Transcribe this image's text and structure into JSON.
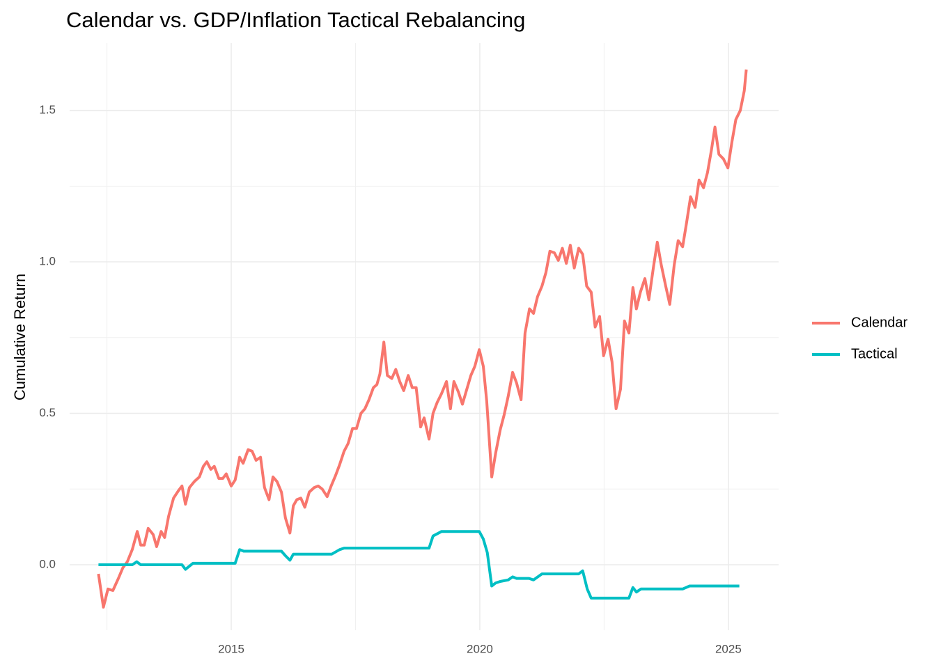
{
  "chart_data": {
    "type": "line",
    "title": "Calendar vs. GDP/Inflation Tactical Rebalancing",
    "y_label": "Cumulative Return",
    "xlim": [
      2011.75,
      2026.01
    ],
    "ylim": [
      -0.216,
      1.722
    ],
    "xticks": [
      2015,
      2020,
      2025
    ],
    "yticks": [
      {
        "value": 0,
        "label": "0.0"
      },
      0.5,
      {
        "value": 1,
        "label": "1.0"
      },
      1.5
    ],
    "xminor_ticks": [
      2012.5,
      2017.5,
      2022.5
    ],
    "yminor_ticks": [
      0.25,
      0.75,
      1.25
    ],
    "grid": true,
    "legend": "right",
    "series": [
      {
        "name": "Calendar",
        "color": "#F8766D",
        "x": [
          2012.33,
          2012.43,
          2012.52,
          2012.62,
          2012.73,
          2012.82,
          2012.91,
          2013.01,
          2013.11,
          2013.18,
          2013.25,
          2013.33,
          2013.43,
          2013.5,
          2013.59,
          2013.66,
          2013.74,
          2013.84,
          2013.94,
          2014.01,
          2014.08,
          2014.16,
          2014.26,
          2014.36,
          2014.44,
          2014.51,
          2014.59,
          2014.66,
          2014.75,
          2014.83,
          2014.9,
          2015.0,
          2015.08,
          2015.17,
          2015.24,
          2015.34,
          2015.42,
          2015.5,
          2015.59,
          2015.67,
          2015.76,
          2015.84,
          2015.92,
          2016.01,
          2016.09,
          2016.18,
          2016.25,
          2016.32,
          2016.4,
          2016.48,
          2016.57,
          2016.67,
          2016.75,
          2016.83,
          2016.93,
          2017.01,
          2017.1,
          2017.18,
          2017.27,
          2017.35,
          2017.44,
          2017.52,
          2017.61,
          2017.69,
          2017.77,
          2017.86,
          2017.93,
          2017.99,
          2018.07,
          2018.14,
          2018.23,
          2018.31,
          2018.39,
          2018.47,
          2018.56,
          2018.64,
          2018.72,
          2018.81,
          2018.88,
          2018.98,
          2019.06,
          2019.14,
          2019.23,
          2019.33,
          2019.41,
          2019.48,
          2019.57,
          2019.65,
          2019.73,
          2019.82,
          2019.9,
          2019.99,
          2020.07,
          2020.14,
          2020.24,
          2020.32,
          2020.41,
          2020.49,
          2020.57,
          2020.66,
          2020.74,
          2020.83,
          2020.91,
          2021.0,
          2021.08,
          2021.16,
          2021.25,
          2021.33,
          2021.41,
          2021.5,
          2021.58,
          2021.66,
          2021.74,
          2021.82,
          2021.9,
          2021.99,
          2022.07,
          2022.15,
          2022.24,
          2022.32,
          2022.41,
          2022.49,
          2022.58,
          2022.66,
          2022.74,
          2022.83,
          2022.91,
          2023.0,
          2023.08,
          2023.15,
          2023.23,
          2023.32,
          2023.4,
          2023.49,
          2023.57,
          2023.65,
          2023.74,
          2023.82,
          2023.91,
          2023.99,
          2024.08,
          2024.16,
          2024.24,
          2024.33,
          2024.41,
          2024.5,
          2024.58,
          2024.66,
          2024.73,
          2024.81,
          2024.9,
          2024.99,
          2025.07,
          2025.15,
          2025.24,
          2025.32,
          2025.36
        ],
        "values": [
          -0.03,
          -0.14,
          -0.08,
          -0.085,
          -0.045,
          -0.01,
          0.01,
          0.05,
          0.11,
          0.065,
          0.065,
          0.12,
          0.1,
          0.06,
          0.11,
          0.09,
          0.16,
          0.22,
          0.245,
          0.26,
          0.2,
          0.255,
          0.275,
          0.29,
          0.325,
          0.34,
          0.315,
          0.325,
          0.285,
          0.285,
          0.3,
          0.26,
          0.28,
          0.355,
          0.335,
          0.38,
          0.375,
          0.345,
          0.355,
          0.255,
          0.215,
          0.29,
          0.275,
          0.24,
          0.155,
          0.105,
          0.195,
          0.215,
          0.22,
          0.19,
          0.24,
          0.255,
          0.26,
          0.25,
          0.225,
          0.26,
          0.295,
          0.33,
          0.375,
          0.4,
          0.45,
          0.45,
          0.5,
          0.515,
          0.545,
          0.585,
          0.595,
          0.63,
          0.735,
          0.625,
          0.615,
          0.645,
          0.605,
          0.575,
          0.625,
          0.585,
          0.585,
          0.455,
          0.485,
          0.415,
          0.5,
          0.535,
          0.565,
          0.605,
          0.515,
          0.605,
          0.57,
          0.53,
          0.575,
          0.625,
          0.655,
          0.71,
          0.655,
          0.54,
          0.29,
          0.37,
          0.445,
          0.495,
          0.555,
          0.635,
          0.6,
          0.545,
          0.765,
          0.845,
          0.83,
          0.885,
          0.92,
          0.965,
          1.035,
          1.03,
          1.005,
          1.045,
          0.995,
          1.055,
          0.98,
          1.045,
          1.025,
          0.92,
          0.9,
          0.785,
          0.82,
          0.69,
          0.745,
          0.67,
          0.515,
          0.58,
          0.805,
          0.765,
          0.915,
          0.845,
          0.9,
          0.945,
          0.875,
          0.98,
          1.065,
          0.99,
          0.92,
          0.86,
          0.99,
          1.07,
          1.05,
          1.13,
          1.215,
          1.18,
          1.27,
          1.245,
          1.295,
          1.37,
          1.445,
          1.355,
          1.34,
          1.31,
          1.395,
          1.47,
          1.5,
          1.565,
          1.635
        ]
      },
      {
        "name": "Tactical",
        "color": "#00BFC4",
        "x": [
          2012.33,
          2013.01,
          2013.1,
          2013.18,
          2014.01,
          2014.08,
          2014.23,
          2015.08,
          2015.17,
          2015.25,
          2016.01,
          2016.09,
          2016.18,
          2016.25,
          2017.02,
          2017.18,
          2017.27,
          2018.98,
          2019.06,
          2019.23,
          2019.99,
          2020.07,
          2020.15,
          2020.24,
          2020.32,
          2020.41,
          2020.57,
          2020.66,
          2020.74,
          2020.99,
          2021.08,
          2021.25,
          2021.99,
          2022.07,
          2022.16,
          2022.24,
          2023.0,
          2023.08,
          2023.15,
          2023.24,
          2024.08,
          2024.22,
          2025.22
        ],
        "values": [
          0,
          0,
          0.01,
          0,
          0,
          -0.015,
          0.005,
          0.005,
          0.05,
          0.045,
          0.045,
          0.03,
          0.015,
          0.035,
          0.035,
          0.05,
          0.055,
          0.055,
          0.095,
          0.11,
          0.11,
          0.085,
          0.04,
          -0.07,
          -0.06,
          -0.055,
          -0.05,
          -0.04,
          -0.045,
          -0.045,
          -0.05,
          -0.03,
          -0.03,
          -0.02,
          -0.08,
          -0.11,
          -0.11,
          -0.075,
          -0.09,
          -0.08,
          -0.08,
          -0.07,
          -0.07
        ]
      }
    ]
  }
}
